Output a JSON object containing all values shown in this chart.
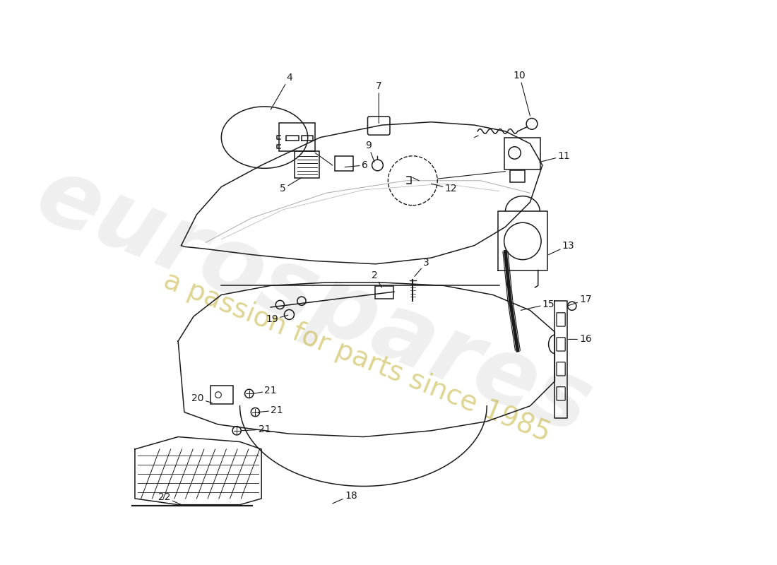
{
  "bg_color": "#ffffff",
  "lc": "#1a1a1a",
  "lw": 1.1,
  "wm1": "#cccccc",
  "wm2": "#c8b94a",
  "figw": 11.0,
  "figh": 8.0,
  "dpi": 100,
  "xmin": 0,
  "xmax": 1100,
  "ymin": 0,
  "ymax": 800
}
